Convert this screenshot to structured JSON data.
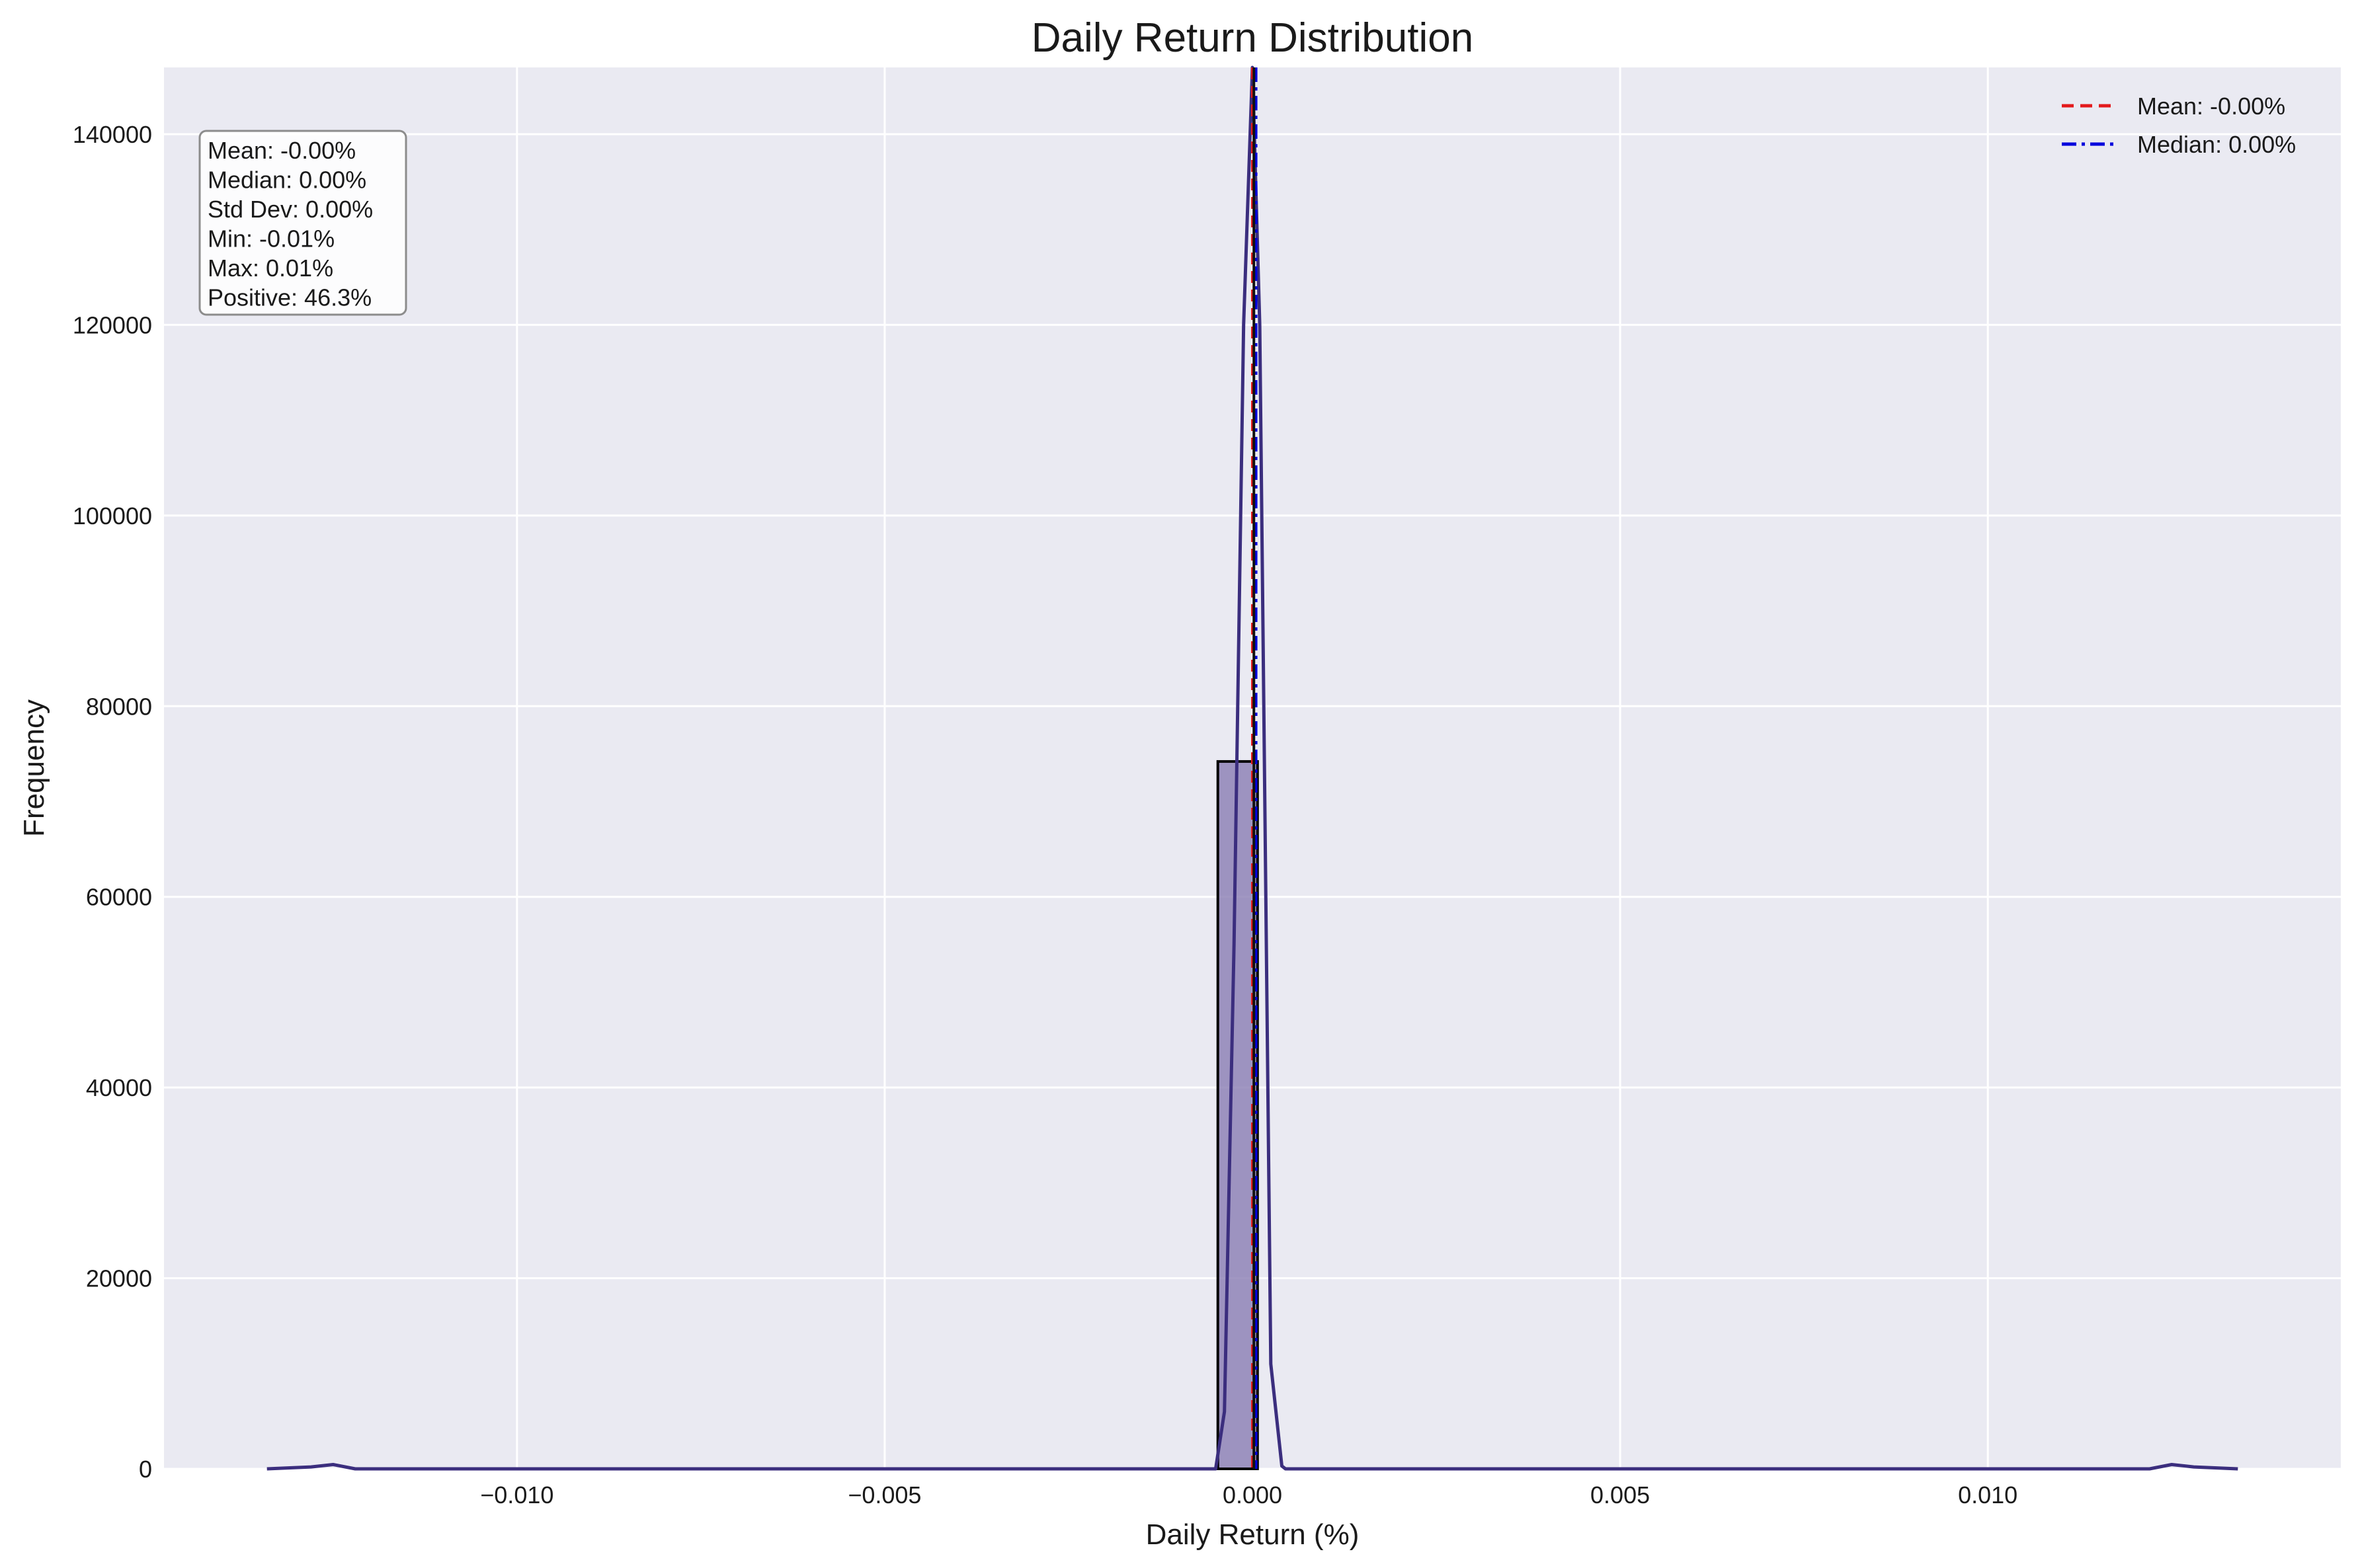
{
  "chart_data": {
    "type": "bar",
    "title": "Daily Return Distribution",
    "xlabel": "Daily Return (%)",
    "ylabel": "Frequency",
    "xlim": [
      -0.0148,
      0.0148
    ],
    "ylim": [
      0,
      147000
    ],
    "x_ticks": [
      -0.01,
      -0.005,
      0.0,
      0.005,
      0.01
    ],
    "x_tick_labels": [
      "−0.010",
      "−0.005",
      "0.000",
      "0.005",
      "0.010"
    ],
    "y_ticks": [
      0,
      20000,
      40000,
      60000,
      80000,
      100000,
      120000,
      140000
    ],
    "y_tick_labels": [
      "0",
      "20000",
      "40000",
      "60000",
      "80000",
      "100000",
      "120000",
      "140000"
    ],
    "grid": true,
    "histogram": {
      "bins": [
        {
          "x0": -0.00047,
          "x1": 7e-05,
          "count": 74200
        }
      ],
      "color": "#8a7db3",
      "edge_color": "#000000"
    },
    "kde": {
      "color": "#3b2e7e",
      "x": [
        -0.0134,
        -0.0128,
        -0.0125,
        -0.0122,
        -0.0005,
        -0.00038,
        -0.00025,
        -0.00012,
        0.0,
        0.0001,
        0.00025,
        0.0004,
        0.00045,
        0.0122,
        0.0125,
        0.0128,
        0.0134
      ],
      "y": [
        0,
        200,
        450,
        0,
        0,
        6000,
        55000,
        120000,
        147000,
        120000,
        11000,
        300,
        0,
        0,
        450,
        200,
        0
      ]
    },
    "reference_lines": [
      {
        "name": "Mean: -0.00%",
        "value": 0.0,
        "color": "#e31a1c",
        "style": "dashed"
      },
      {
        "name": "Median: 0.00%",
        "value": 5e-05,
        "color": "#0000dd",
        "style": "dashdot"
      }
    ],
    "legend_position": "top-right",
    "stats_box": {
      "lines": [
        "Mean: -0.00%",
        "Median: 0.00%",
        "Std Dev: 0.00%",
        "Min: -0.01%",
        "Max: 0.01%",
        "Positive: 46.3%"
      ],
      "position": "top-left"
    }
  },
  "colors": {
    "plot_background": "#eaeaf2",
    "grid": "#ffffff",
    "page_background": "#ffffff"
  }
}
